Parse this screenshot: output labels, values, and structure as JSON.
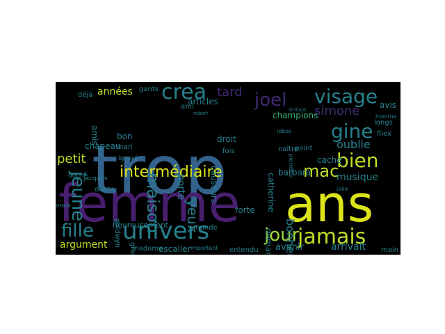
{
  "palette": {
    "purple": "#481f6e",
    "violet": "#3f2a73",
    "blue": "#33638d",
    "teal": "#26818e",
    "green": "#35b779",
    "lime": "#bddf26",
    "yellow": "#dce319",
    "yellow_green": "#a0da39"
  },
  "words": [
    "trop",
    "femme",
    "ans",
    "univers",
    "jamais",
    "visage",
    "crea",
    "fille",
    "intermédiaire",
    "bien",
    "jour",
    "joel",
    "gine",
    "maison",
    "jeune",
    "mac",
    "simone",
    "tard",
    "oublie",
    "yeux",
    "petit",
    "musique",
    "porte",
    "années",
    "articles",
    "bonheur",
    "argument",
    "avenir",
    "arrivait",
    "champions",
    "droit",
    "causeurs",
    "catherine",
    "barbara",
    "demanda",
    "cache",
    "forte",
    "heureusement",
    "escalier",
    "amis",
    "chapeau",
    "bon",
    "gants",
    "ami",
    "fois",
    "avis",
    "doute",
    "entendu",
    "monde",
    "important",
    "madame",
    "goldwyn",
    "grand",
    "main",
    "naître",
    "idées",
    "longs",
    "filex",
    "point",
    "jolie",
    "mari",
    "donné",
    "ignoré",
    "déjà",
    "robert",
    "homme",
    "pierrette",
    "brillant",
    "jacques",
    "vrais"
  ]
}
